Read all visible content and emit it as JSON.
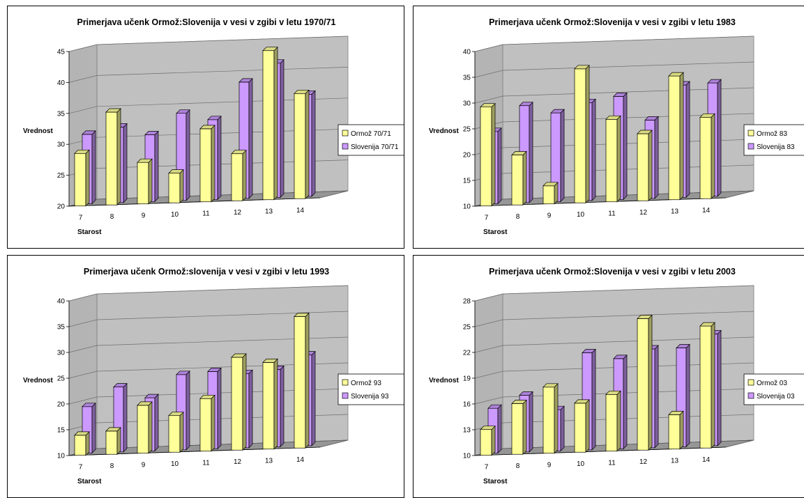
{
  "chart_data": [
    {
      "type": "bar",
      "title": "Primerjava učenk Ormož:Slovenija v vesi v zgibi v letu 1970/71",
      "xlabel": "Starost",
      "ylabel": "Vrednost",
      "categories": [
        "7",
        "8",
        "9",
        "10",
        "11",
        "12",
        "13",
        "14"
      ],
      "ylim": [
        20,
        45
      ],
      "yticks": [
        20,
        25,
        30,
        35,
        40,
        45
      ],
      "series": [
        {
          "name": "Ormož 70/71",
          "values": [
            28.5,
            35,
            26.7,
            24.8,
            31.8,
            27.6,
            44.1,
            37
          ]
        },
        {
          "name": "Slovenija 70/71",
          "values": [
            31.2,
            32.2,
            30.8,
            34.1,
            32.9,
            38.8,
            41.7,
            36.5
          ]
        }
      ],
      "legend": "right",
      "grid": true,
      "colors": {
        "series1": "#FFFF99",
        "series2": "#CC99FF",
        "wall": "#C0C0C0",
        "floor": "#969696"
      }
    },
    {
      "type": "bar",
      "title": "Primerjava učenk Ormož:Slovenija v vesi v zgibi v letu 1983",
      "xlabel": "Starost",
      "ylabel": "Vrednost",
      "categories": [
        "7",
        "8",
        "9",
        "10",
        "11",
        "12",
        "13",
        "14"
      ],
      "ylim": [
        10,
        40
      ],
      "yticks": [
        10,
        15,
        20,
        25,
        30,
        35,
        40
      ],
      "series": [
        {
          "name": "Ormož 83",
          "values": [
            29.2,
            19.7,
            13.5,
            36,
            26,
            23,
            34,
            25.8
          ]
        },
        {
          "name": "Slovenija 83",
          "values": [
            24,
            28.8,
            27.2,
            29,
            30,
            25.2,
            31.8,
            32
          ]
        }
      ],
      "legend": "right",
      "grid": true,
      "colors": {
        "series1": "#FFFF99",
        "series2": "#CC99FF",
        "wall": "#C0C0C0",
        "floor": "#969696"
      }
    },
    {
      "type": "bar",
      "title": "Primerjava učenk Ormož:slovenija v vesi v zgibi v letu 1993",
      "xlabel": "Starost",
      "ylabel": "Vrednost",
      "categories": [
        "7",
        "8",
        "9",
        "10",
        "11",
        "12",
        "13",
        "14"
      ],
      "ylim": [
        10,
        40
      ],
      "yticks": [
        10,
        15,
        20,
        25,
        30,
        35,
        40
      ],
      "series": [
        {
          "name": "Ormož 93",
          "values": [
            13.9,
            14.5,
            19.3,
            17.1,
            20.2,
            28,
            26.8,
            35.5
          ]
        },
        {
          "name": "Slovenija 93",
          "values": [
            19,
            22.6,
            20.3,
            24.6,
            25,
            24.4,
            25,
            27.6
          ]
        }
      ],
      "legend": "right",
      "grid": true,
      "colors": {
        "series1": "#FFFF99",
        "series2": "#CC99FF",
        "wall": "#C0C0C0",
        "floor": "#969696"
      }
    },
    {
      "type": "bar",
      "title": "Primerjava učenk Ormož:Slovenija v vesi v zgibi v letu 2003",
      "xlabel": "Starost",
      "ylabel": "Vrednost",
      "categories": [
        "7",
        "8",
        "9",
        "10",
        "11",
        "12",
        "13",
        "14"
      ],
      "ylim": [
        10,
        28
      ],
      "yticks": [
        10,
        13,
        16,
        19,
        22,
        25,
        28
      ],
      "series": [
        {
          "name": "Ormož 03",
          "values": [
            13,
            15.9,
            17.7,
            15.7,
            16.6,
            25.3,
            14,
            24.2
          ]
        },
        {
          "name": "Slovenija 03",
          "values": [
            15.2,
            16.6,
            14.8,
            21.3,
            20.5,
            21.5,
            21.5,
            23
          ]
        }
      ],
      "legend": "right",
      "grid": true,
      "colors": {
        "series1": "#FFFF99",
        "series2": "#CC99FF",
        "wall": "#C0C0C0",
        "floor": "#969696"
      }
    }
  ]
}
